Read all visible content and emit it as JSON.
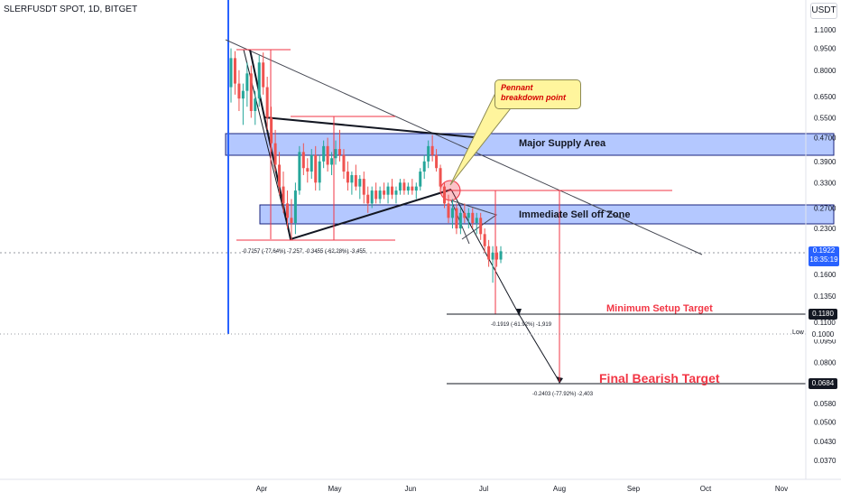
{
  "header": {
    "symbol_title": "SLERFUSDT SPOT, 1D, BITGET",
    "currency_button": "USDT"
  },
  "chart_data": {
    "type": "candlestick",
    "y_scale": "log",
    "y_ticks": [
      "1.1000",
      "0.9500",
      "0.8000",
      "0.6500",
      "0.5500",
      "0.4700",
      "0.3900",
      "0.3300",
      "0.2700",
      "0.2300",
      "0.1950",
      "0.1600",
      "0.1350",
      "0.1100",
      "0.0950",
      "0.0800",
      "0.0680",
      "0.0580",
      "0.0500",
      "0.0430",
      "0.0370"
    ],
    "x_ticks": [
      "Apr",
      "May",
      "Jun",
      "Jul",
      "Aug",
      "Sep",
      "Oct",
      "Nov"
    ],
    "last_price": "0.1922",
    "countdown": "18:35:19",
    "min_target_price": "0.1180",
    "low_label": "Low",
    "low_price": "0.1000",
    "final_target_price": "0.0684",
    "candles": [
      {
        "o": 0.7,
        "h": 0.95,
        "l": 0.62,
        "c": 0.88
      },
      {
        "o": 0.88,
        "h": 0.93,
        "l": 0.66,
        "c": 0.72
      },
      {
        "o": 0.72,
        "h": 0.8,
        "l": 0.58,
        "c": 0.64
      },
      {
        "o": 0.64,
        "h": 0.72,
        "l": 0.52,
        "c": 0.68
      },
      {
        "o": 0.68,
        "h": 0.85,
        "l": 0.6,
        "c": 0.78
      },
      {
        "o": 0.78,
        "h": 0.83,
        "l": 0.55,
        "c": 0.58
      },
      {
        "o": 0.58,
        "h": 0.68,
        "l": 0.52,
        "c": 0.64
      },
      {
        "o": 0.64,
        "h": 0.9,
        "l": 0.6,
        "c": 0.85
      },
      {
        "o": 0.85,
        "h": 0.92,
        "l": 0.66,
        "c": 0.7
      },
      {
        "o": 0.7,
        "h": 0.76,
        "l": 0.5,
        "c": 0.55
      },
      {
        "o": 0.55,
        "h": 0.6,
        "l": 0.42,
        "c": 0.45
      },
      {
        "o": 0.45,
        "h": 0.5,
        "l": 0.36,
        "c": 0.38
      },
      {
        "o": 0.38,
        "h": 0.42,
        "l": 0.3,
        "c": 0.32
      },
      {
        "o": 0.32,
        "h": 0.36,
        "l": 0.26,
        "c": 0.28
      },
      {
        "o": 0.28,
        "h": 0.31,
        "l": 0.23,
        "c": 0.25
      },
      {
        "o": 0.25,
        "h": 0.29,
        "l": 0.21,
        "c": 0.24
      },
      {
        "o": 0.24,
        "h": 0.33,
        "l": 0.22,
        "c": 0.31
      },
      {
        "o": 0.31,
        "h": 0.44,
        "l": 0.3,
        "c": 0.42
      },
      {
        "o": 0.42,
        "h": 0.45,
        "l": 0.35,
        "c": 0.37
      },
      {
        "o": 0.37,
        "h": 0.4,
        "l": 0.33,
        "c": 0.36
      },
      {
        "o": 0.36,
        "h": 0.43,
        "l": 0.34,
        "c": 0.41
      },
      {
        "o": 0.41,
        "h": 0.44,
        "l": 0.31,
        "c": 0.33
      },
      {
        "o": 0.33,
        "h": 0.41,
        "l": 0.31,
        "c": 0.39
      },
      {
        "o": 0.39,
        "h": 0.46,
        "l": 0.37,
        "c": 0.44
      },
      {
        "o": 0.44,
        "h": 0.47,
        "l": 0.36,
        "c": 0.38
      },
      {
        "o": 0.38,
        "h": 0.42,
        "l": 0.35,
        "c": 0.4
      },
      {
        "o": 0.4,
        "h": 0.46,
        "l": 0.38,
        "c": 0.43
      },
      {
        "o": 0.43,
        "h": 0.5,
        "l": 0.39,
        "c": 0.41
      },
      {
        "o": 0.41,
        "h": 0.43,
        "l": 0.34,
        "c": 0.36
      },
      {
        "o": 0.36,
        "h": 0.39,
        "l": 0.31,
        "c": 0.33
      },
      {
        "o": 0.33,
        "h": 0.36,
        "l": 0.3,
        "c": 0.35
      },
      {
        "o": 0.35,
        "h": 0.38,
        "l": 0.31,
        "c": 0.32
      },
      {
        "o": 0.32,
        "h": 0.35,
        "l": 0.29,
        "c": 0.34
      },
      {
        "o": 0.34,
        "h": 0.36,
        "l": 0.28,
        "c": 0.3
      },
      {
        "o": 0.3,
        "h": 0.32,
        "l": 0.26,
        "c": 0.28
      },
      {
        "o": 0.28,
        "h": 0.32,
        "l": 0.27,
        "c": 0.31
      },
      {
        "o": 0.31,
        "h": 0.33,
        "l": 0.28,
        "c": 0.29
      },
      {
        "o": 0.29,
        "h": 0.32,
        "l": 0.28,
        "c": 0.31
      },
      {
        "o": 0.31,
        "h": 0.33,
        "l": 0.29,
        "c": 0.3
      },
      {
        "o": 0.3,
        "h": 0.33,
        "l": 0.28,
        "c": 0.32
      },
      {
        "o": 0.32,
        "h": 0.34,
        "l": 0.29,
        "c": 0.3
      },
      {
        "o": 0.3,
        "h": 0.32,
        "l": 0.28,
        "c": 0.31
      },
      {
        "o": 0.31,
        "h": 0.34,
        "l": 0.3,
        "c": 0.33
      },
      {
        "o": 0.33,
        "h": 0.34,
        "l": 0.3,
        "c": 0.31
      },
      {
        "o": 0.31,
        "h": 0.33,
        "l": 0.3,
        "c": 0.32
      },
      {
        "o": 0.32,
        "h": 0.34,
        "l": 0.3,
        "c": 0.31
      },
      {
        "o": 0.31,
        "h": 0.33,
        "l": 0.29,
        "c": 0.32
      },
      {
        "o": 0.32,
        "h": 0.37,
        "l": 0.31,
        "c": 0.36
      },
      {
        "o": 0.36,
        "h": 0.41,
        "l": 0.34,
        "c": 0.39
      },
      {
        "o": 0.39,
        "h": 0.46,
        "l": 0.37,
        "c": 0.44
      },
      {
        "o": 0.44,
        "h": 0.48,
        "l": 0.39,
        "c": 0.41
      },
      {
        "o": 0.41,
        "h": 0.43,
        "l": 0.36,
        "c": 0.37
      },
      {
        "o": 0.37,
        "h": 0.38,
        "l": 0.31,
        "c": 0.32
      },
      {
        "o": 0.32,
        "h": 0.33,
        "l": 0.27,
        "c": 0.28
      },
      {
        "o": 0.28,
        "h": 0.3,
        "l": 0.24,
        "c": 0.25
      },
      {
        "o": 0.25,
        "h": 0.29,
        "l": 0.23,
        "c": 0.27
      },
      {
        "o": 0.27,
        "h": 0.28,
        "l": 0.22,
        "c": 0.23
      },
      {
        "o": 0.23,
        "h": 0.27,
        "l": 0.22,
        "c": 0.26
      },
      {
        "o": 0.26,
        "h": 0.28,
        "l": 0.24,
        "c": 0.25
      },
      {
        "o": 0.25,
        "h": 0.27,
        "l": 0.23,
        "c": 0.26
      },
      {
        "o": 0.26,
        "h": 0.27,
        "l": 0.23,
        "c": 0.24
      },
      {
        "o": 0.24,
        "h": 0.26,
        "l": 0.22,
        "c": 0.25
      },
      {
        "o": 0.25,
        "h": 0.26,
        "l": 0.21,
        "c": 0.22
      },
      {
        "o": 0.22,
        "h": 0.23,
        "l": 0.19,
        "c": 0.2
      },
      {
        "o": 0.2,
        "h": 0.21,
        "l": 0.17,
        "c": 0.18
      },
      {
        "o": 0.18,
        "h": 0.2,
        "l": 0.15,
        "c": 0.19
      },
      {
        "o": 0.19,
        "h": 0.2,
        "l": 0.17,
        "c": 0.18
      },
      {
        "o": 0.18,
        "h": 0.2,
        "l": 0.175,
        "c": 0.1922
      }
    ]
  },
  "annotations": {
    "supply_zone": "Major Supply Area",
    "selloff_zone": "Immediate Sell off Zone",
    "pennant_callout": "Pennant breakdown point",
    "min_target_label": "Minimum Setup Target",
    "final_target_label": "Final Bearish Target",
    "measure_1": "-0.7257 (-77.64%) -7,257",
    "measure_2": "-0.3455 (-62.28%) -3,455",
    "measure_3": "-0.1919 (-61.92%) -1,919",
    "measure_4": "-0.2403 (-77.92%) -2,403"
  },
  "colors": {
    "bull": "#26a69a",
    "bear": "#ef5350",
    "zone_fill": "#2962ff",
    "measure": "#f23645",
    "target_text": "#f23645",
    "callout_fill": "#fff59d"
  }
}
